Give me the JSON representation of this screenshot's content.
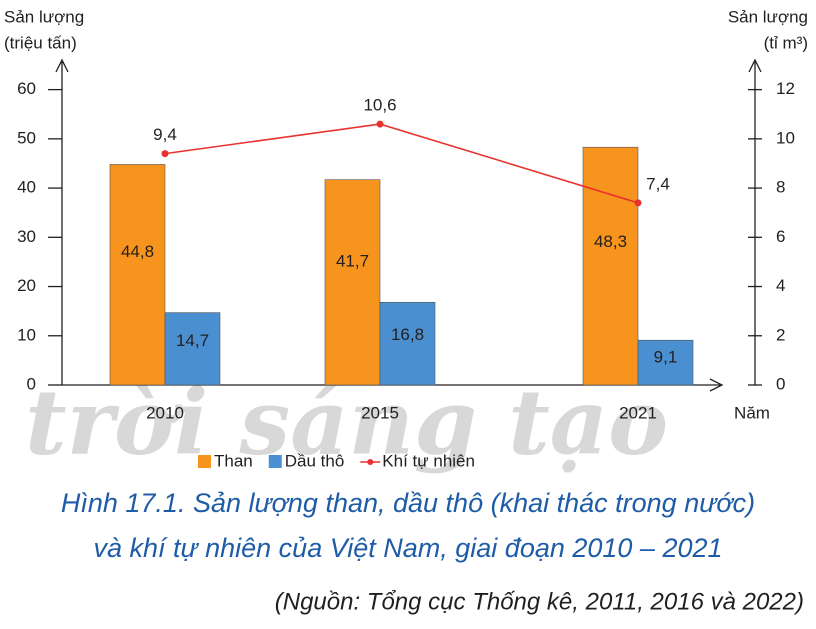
{
  "chart_data": {
    "type": "bar",
    "y_label": [
      "Sản lượng",
      "(triệu tấn)"
    ],
    "y2_label": [
      "Sản lượng",
      "(tỉ m³)"
    ],
    "x_label": "Năm",
    "categories": [
      "2010",
      "2015",
      "2021"
    ],
    "series": [
      {
        "name": "Than",
        "color": "#f7941d",
        "values": [
          44.8,
          41.7,
          48.3
        ],
        "value_labels": [
          "44,8",
          "41,7",
          "48,3"
        ]
      },
      {
        "name": "Dầu thô",
        "color": "#4a8fd0",
        "values": [
          14.7,
          16.8,
          9.1
        ],
        "value_labels": [
          "14,7",
          "16,8",
          "9,1"
        ]
      },
      {
        "name": "Khí tự nhiên",
        "type": "line",
        "axis": "y2",
        "color": "#e8322f",
        "values": [
          9.4,
          10.6,
          7.4
        ],
        "value_labels": [
          "9,4",
          "10,6",
          "7,4"
        ]
      }
    ],
    "ylim": [
      0,
      65
    ],
    "yticks": [
      0,
      10,
      20,
      30,
      40,
      50,
      60
    ],
    "y2lim": [
      0,
      13
    ],
    "y2ticks": [
      0,
      2,
      4,
      6,
      8,
      10,
      12
    ],
    "grid": false
  },
  "caption": {
    "lines": [
      "Hình 17.1. Sản lượng than, dầu thô (khai thác trong nước)",
      "và khí tự nhiên của Việt Nam, giai đoạn 2010 – 2021"
    ],
    "source": "(Nguồn: Tổng cục Thống kê, 2011, 2016 và 2022)"
  },
  "watermark": "trời sáng tạo"
}
